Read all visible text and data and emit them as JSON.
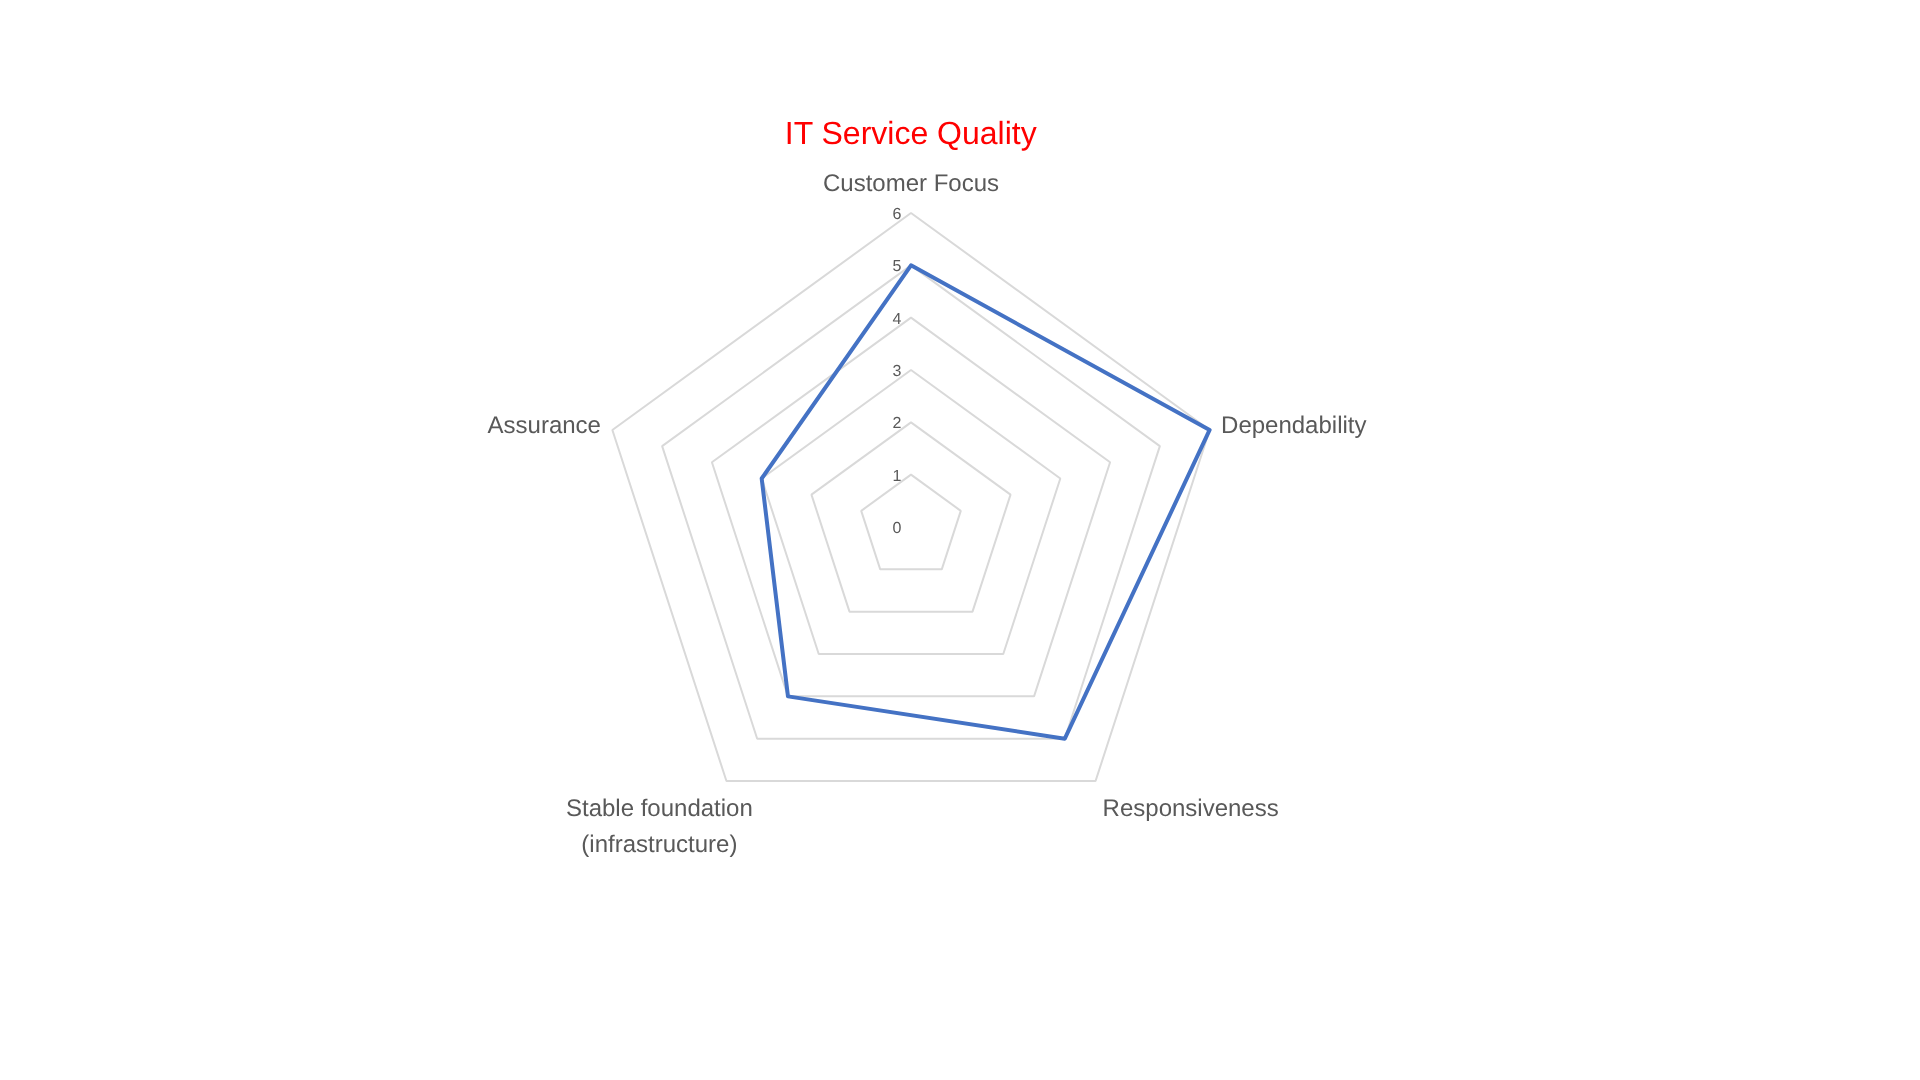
{
  "chart_data": {
    "type": "radar",
    "title": "IT Service Quality",
    "categories": [
      "Customer Focus",
      "Dependability",
      "Responsiveness",
      "Stable foundation (infrastructure)",
      "Assurance"
    ],
    "series": [
      {
        "color": "#4472c4",
        "values": [
          5,
          6,
          5,
          4,
          3
        ]
      }
    ],
    "ylim": [
      0,
      6
    ],
    "yticks": [
      0,
      1,
      2,
      3,
      4,
      5,
      6
    ],
    "grid": true
  }
}
